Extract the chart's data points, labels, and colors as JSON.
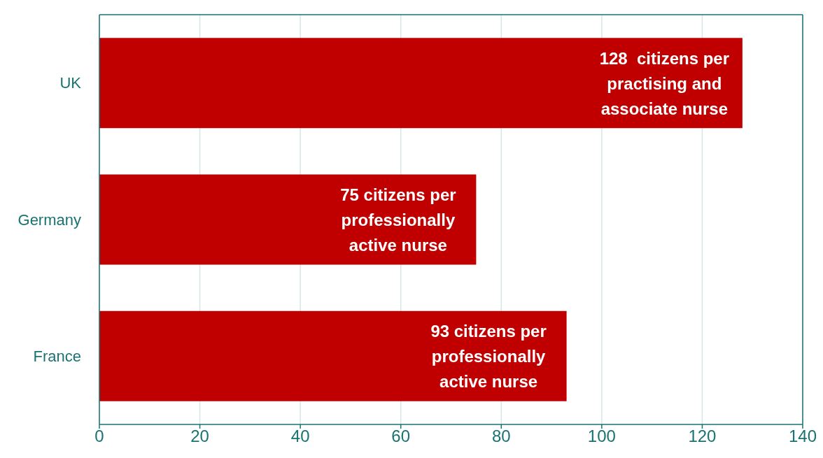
{
  "chart_data": {
    "type": "bar",
    "orientation": "horizontal",
    "categories": [
      "UK",
      "Germany",
      "France"
    ],
    "values": [
      128,
      75,
      93
    ],
    "color": "#c00000",
    "value_labels": [
      "128  citizens per practising and associate nurse",
      "75 citizens per professionally active nurse",
      "93 citizens per professionally active nurse"
    ],
    "xlim": [
      0,
      140
    ],
    "xticks": [
      0,
      20,
      40,
      60,
      80,
      100,
      120,
      140
    ],
    "grid": "x",
    "legend": false
  }
}
